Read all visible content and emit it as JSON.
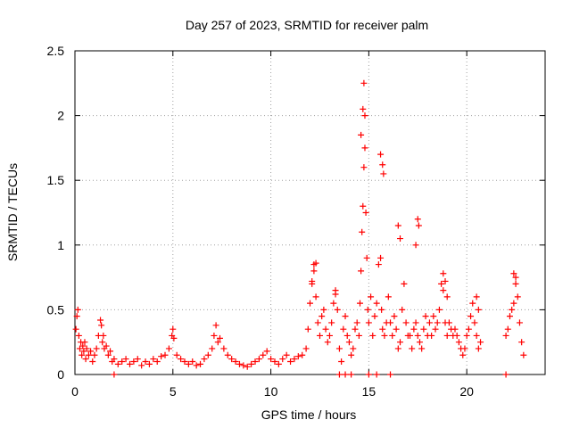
{
  "chart_data": {
    "type": "scatter",
    "title": "Day 257 of 2023, SRMTID for receiver palm",
    "xlabel": "GPS time / hours",
    "ylabel": "SRMTID / TECUs",
    "xlim": [
      0,
      24
    ],
    "ylim": [
      0,
      2.5
    ],
    "xticks": [
      0,
      5,
      10,
      15,
      20
    ],
    "xtick_labels": [
      "0",
      "5",
      "10",
      "15",
      "20"
    ],
    "yticks": [
      0,
      0.5,
      1,
      1.5,
      2,
      2.5
    ],
    "ytick_labels": [
      "0",
      "0.5",
      "1",
      "1.5",
      "2",
      "2.5"
    ],
    "grid": true,
    "marker": "+",
    "color": "#ff0000",
    "series": [
      {
        "name": "SRMTID",
        "x": [
          0.05,
          0.1,
          0.15,
          0.2,
          0.25,
          0.3,
          0.35,
          0.4,
          0.45,
          0.5,
          0.55,
          0.6,
          0.7,
          0.8,
          0.9,
          1.0,
          1.1,
          1.2,
          1.3,
          1.35,
          1.4,
          1.45,
          1.5,
          1.6,
          1.7,
          1.8,
          1.9,
          2.0,
          2.2,
          2.4,
          2.6,
          2.8,
          3.0,
          3.2,
          3.4,
          3.6,
          3.8,
          4.0,
          4.2,
          4.4,
          4.6,
          4.8,
          4.95,
          5.0,
          5.05,
          5.2,
          5.4,
          5.6,
          5.8,
          6.0,
          6.2,
          6.4,
          6.6,
          6.8,
          7.0,
          7.1,
          7.2,
          7.3,
          7.4,
          7.6,
          7.8,
          8.0,
          8.2,
          8.4,
          8.6,
          8.8,
          9.0,
          9.2,
          9.4,
          9.6,
          9.8,
          10.0,
          10.2,
          10.4,
          10.6,
          10.8,
          11.0,
          11.2,
          11.4,
          11.6,
          11.8,
          11.9,
          12.0,
          12.1,
          12.2,
          12.3,
          12.4,
          12.5,
          12.6,
          12.7,
          12.8,
          12.9,
          13.0,
          13.1,
          13.2,
          13.3,
          13.4,
          13.5,
          13.6,
          13.7,
          13.8,
          13.9,
          14.0,
          14.1,
          14.2,
          14.3,
          14.4,
          14.5,
          14.55,
          14.6,
          14.65,
          14.7,
          14.75,
          14.8,
          14.85,
          14.9,
          14.95,
          15.0,
          15.1,
          15.2,
          15.3,
          15.4,
          15.5,
          15.6,
          15.65,
          15.7,
          15.8,
          15.9,
          16.0,
          16.1,
          16.2,
          16.3,
          16.4,
          16.5,
          16.6,
          16.7,
          16.8,
          16.9,
          17.0,
          17.1,
          17.2,
          17.3,
          17.4,
          17.5,
          17.6,
          17.7,
          17.8,
          17.9,
          18.0,
          18.1,
          18.2,
          18.3,
          18.4,
          18.5,
          18.6,
          18.7,
          18.8,
          18.9,
          19.0,
          19.1,
          19.2,
          19.3,
          19.4,
          19.5,
          19.6,
          19.7,
          19.8,
          19.9,
          20.0,
          20.1,
          20.2,
          20.3,
          20.4,
          20.5,
          20.6,
          20.7,
          22.0,
          22.1,
          22.2,
          22.3,
          22.4,
          22.5,
          22.6,
          22.7,
          22.8,
          22.9,
          12.1,
          12.2,
          12.3,
          13.3,
          14.6,
          14.7,
          14.75,
          14.8,
          15.6,
          15.7,
          15.75,
          16.5,
          16.6,
          17.4,
          17.5,
          17.55,
          18.8,
          18.9,
          19.0,
          20.5,
          20.6,
          22.4,
          22.5,
          2.0,
          13.5,
          13.8,
          14.1,
          15.0,
          15.4,
          16.1,
          22.0
        ],
        "y": [
          0.35,
          0.45,
          0.5,
          0.3,
          0.2,
          0.25,
          0.15,
          0.22,
          0.18,
          0.25,
          0.12,
          0.2,
          0.15,
          0.18,
          0.1,
          0.15,
          0.2,
          0.3,
          0.42,
          0.38,
          0.25,
          0.3,
          0.2,
          0.22,
          0.15,
          0.18,
          0.1,
          0.12,
          0.08,
          0.1,
          0.12,
          0.08,
          0.1,
          0.12,
          0.07,
          0.1,
          0.08,
          0.12,
          0.1,
          0.14,
          0.15,
          0.2,
          0.3,
          0.35,
          0.28,
          0.15,
          0.12,
          0.1,
          0.08,
          0.1,
          0.07,
          0.08,
          0.12,
          0.15,
          0.2,
          0.3,
          0.38,
          0.25,
          0.28,
          0.2,
          0.15,
          0.12,
          0.1,
          0.08,
          0.07,
          0.06,
          0.08,
          0.1,
          0.12,
          0.15,
          0.18,
          0.12,
          0.1,
          0.08,
          0.12,
          0.15,
          0.1,
          0.12,
          0.14,
          0.15,
          0.2,
          0.35,
          0.55,
          0.7,
          0.85,
          0.6,
          0.4,
          0.3,
          0.45,
          0.5,
          0.35,
          0.25,
          0.3,
          0.4,
          0.55,
          0.65,
          0.5,
          0.2,
          0.1,
          0.35,
          0.45,
          0.3,
          0.25,
          0.15,
          0.2,
          0.35,
          0.4,
          0.3,
          0.55,
          0.8,
          1.1,
          1.3,
          1.6,
          1.75,
          1.25,
          0.9,
          0.5,
          0.4,
          0.6,
          0.3,
          0.45,
          0.55,
          0.85,
          0.9,
          0.5,
          0.35,
          0.3,
          0.4,
          0.6,
          0.4,
          0.3,
          0.45,
          0.35,
          0.2,
          0.25,
          0.5,
          0.7,
          0.4,
          0.3,
          0.3,
          0.2,
          0.35,
          0.4,
          0.3,
          0.25,
          0.2,
          0.35,
          0.45,
          0.3,
          0.4,
          0.3,
          0.45,
          0.35,
          0.4,
          0.5,
          0.7,
          0.65,
          0.4,
          0.3,
          0.4,
          0.35,
          0.3,
          0.35,
          0.3,
          0.25,
          0.2,
          0.15,
          0.2,
          0.3,
          0.35,
          0.45,
          0.55,
          0.4,
          0.3,
          0.2,
          0.25,
          0.3,
          0.35,
          0.45,
          0.5,
          0.55,
          0.7,
          0.6,
          0.4,
          0.25,
          0.15,
          0.72,
          0.8,
          0.86,
          0.62,
          1.85,
          2.05,
          2.25,
          2.0,
          1.7,
          1.62,
          1.55,
          1.15,
          1.05,
          1.0,
          1.2,
          1.15,
          0.78,
          0.72,
          0.6,
          0.6,
          0.5,
          0.78,
          0.75,
          0.0,
          0.0,
          0.0,
          0.0,
          0.0,
          0.0,
          0.0,
          0.0
        ]
      }
    ]
  }
}
